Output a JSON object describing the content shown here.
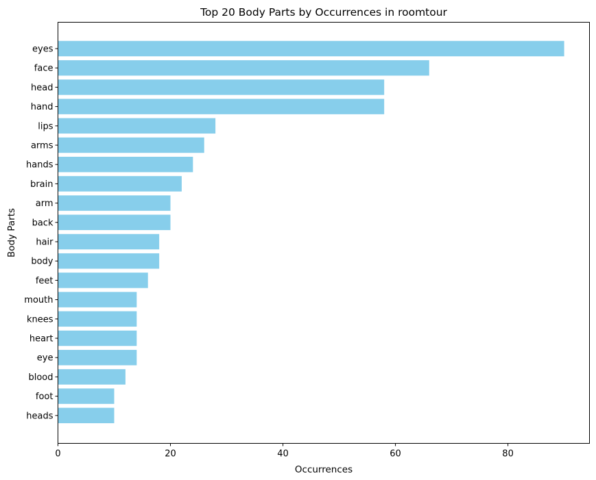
{
  "chart_data": {
    "type": "bar",
    "orientation": "horizontal",
    "title": "Top 20 Body Parts by Occurrences in roomtour",
    "xlabel": "Occurrences",
    "ylabel": "Body Parts",
    "xlim": [
      0,
      94.5
    ],
    "xticks": [
      0,
      20,
      40,
      60,
      80
    ],
    "grid": false,
    "bar_color": "#87ceeb",
    "categories": [
      "eyes",
      "face",
      "head",
      "hand",
      "lips",
      "arms",
      "hands",
      "brain",
      "arm",
      "back",
      "hair",
      "body",
      "feet",
      "mouth",
      "knees",
      "heart",
      "eye",
      "blood",
      "foot",
      "heads"
    ],
    "values": [
      90,
      66,
      58,
      58,
      28,
      26,
      24,
      22,
      20,
      20,
      18,
      18,
      16,
      14,
      14,
      14,
      14,
      12,
      10,
      10
    ]
  }
}
